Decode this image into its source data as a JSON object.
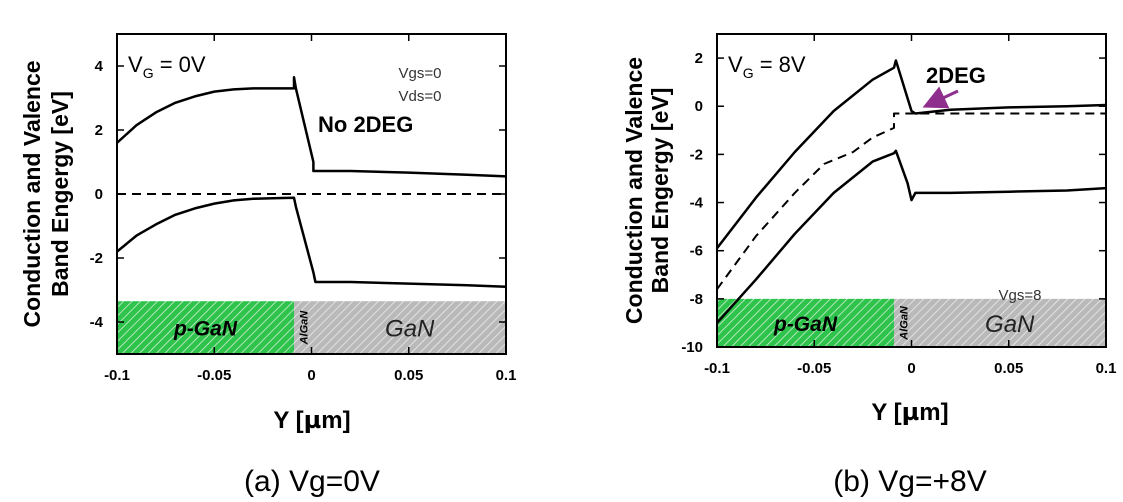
{
  "chart_data": [
    {
      "type": "line",
      "caption": "(a) Vg=0V",
      "ylabel_line1": "Conduction and Valence",
      "ylabel_line2": "Band Engergy  [eV]",
      "xlabel_prefix": "Y [",
      "xlabel_mu": "µ",
      "xlabel_suffix": "m]",
      "xlim": [
        -0.1,
        0.1
      ],
      "ylim": [
        -5,
        5
      ],
      "xticks": [
        "-0.1",
        "-0.05",
        "0",
        "0.05",
        "0.1"
      ],
      "yticks": [
        "4",
        "2",
        "0",
        "-2",
        "-4"
      ],
      "condition": {
        "main": "V",
        "sub": "G",
        "rest": " = 0V"
      },
      "notes": [
        "Vgs=0",
        "Vds=0"
      ],
      "annotation": "No 2DEG",
      "regions": {
        "pgan": "p-GaN",
        "algan": "AlGaN",
        "gan": "GaN",
        "band_floor": -3.35
      },
      "series": [
        {
          "style": "solid",
          "x": [
            -0.1,
            -0.09,
            -0.08,
            -0.07,
            -0.06,
            -0.05,
            -0.04,
            -0.03,
            -0.02,
            -0.009,
            -0.009,
            -0.008,
            0.001,
            0.001,
            0.02,
            0.05,
            0.08,
            0.1
          ],
          "y": [
            1.6,
            2.15,
            2.55,
            2.85,
            3.05,
            3.2,
            3.27,
            3.3,
            3.3,
            3.3,
            3.65,
            3.3,
            1.0,
            0.72,
            0.72,
            0.67,
            0.6,
            0.55
          ]
        },
        {
          "style": "solid",
          "x": [
            -0.1,
            -0.09,
            -0.08,
            -0.07,
            -0.06,
            -0.05,
            -0.04,
            -0.03,
            -0.02,
            -0.009,
            -0.008,
            0.001,
            0.002,
            0.02,
            0.05,
            0.08,
            0.1
          ],
          "y": [
            -1.8,
            -1.3,
            -0.95,
            -0.65,
            -0.45,
            -0.3,
            -0.2,
            -0.15,
            -0.13,
            -0.12,
            -0.4,
            -2.45,
            -2.75,
            -2.75,
            -2.8,
            -2.85,
            -2.9
          ]
        },
        {
          "style": "dashed",
          "x": [
            -0.1,
            0.1
          ],
          "y": [
            0,
            0
          ]
        }
      ]
    },
    {
      "type": "line",
      "caption": "(b) Vg=+8V",
      "ylabel_line1": "Conduction and Valence",
      "ylabel_line2": "Band Engergy  [eV]",
      "xlabel_prefix": "Y [",
      "xlabel_mu": "µ",
      "xlabel_suffix": "m]",
      "xlim": [
        -0.1,
        0.1
      ],
      "ylim": [
        -10,
        3
      ],
      "xticks": [
        "-0.1",
        "-0.05",
        "0",
        "0.05",
        "0.1"
      ],
      "yticks": [
        "2",
        "0",
        "-2",
        "-4",
        "-6",
        "-8",
        "-10"
      ],
      "condition": {
        "main": "V",
        "sub": "G",
        "rest": " = 8V"
      },
      "notes": [
        "Vgs=8"
      ],
      "annotation": "2DEG",
      "arrow_color": "#8e2f8e",
      "regions": {
        "pgan": "p-GaN",
        "algan": "AlGaN",
        "gan": "GaN",
        "band_floor": -8.0
      },
      "series": [
        {
          "style": "solid",
          "x": [
            -0.1,
            -0.08,
            -0.06,
            -0.04,
            -0.02,
            -0.009,
            -0.008,
            0.0,
            0.002,
            0.02,
            0.05,
            0.08,
            0.1
          ],
          "y": [
            -5.9,
            -3.8,
            -1.9,
            -0.2,
            1.1,
            1.6,
            1.9,
            -0.2,
            -0.3,
            -0.15,
            -0.05,
            0.0,
            0.05
          ]
        },
        {
          "style": "dashed",
          "x": [
            -0.1,
            -0.08,
            -0.06,
            -0.045,
            -0.03,
            -0.02,
            -0.009,
            -0.009,
            -0.005,
            0.0,
            0.1
          ],
          "y": [
            -7.6,
            -5.4,
            -3.6,
            -2.4,
            -1.9,
            -1.3,
            -0.9,
            -0.3,
            -0.3,
            -0.3,
            -0.3
          ]
        },
        {
          "style": "solid",
          "x": [
            -0.1,
            -0.08,
            -0.06,
            -0.04,
            -0.02,
            -0.009,
            -0.008,
            -0.002,
            0.0,
            0.002,
            0.02,
            0.05,
            0.08,
            0.1
          ],
          "y": [
            -9.0,
            -7.2,
            -5.3,
            -3.6,
            -2.3,
            -1.95,
            -1.85,
            -3.2,
            -3.9,
            -3.6,
            -3.6,
            -3.55,
            -3.5,
            -3.4
          ]
        }
      ]
    }
  ]
}
